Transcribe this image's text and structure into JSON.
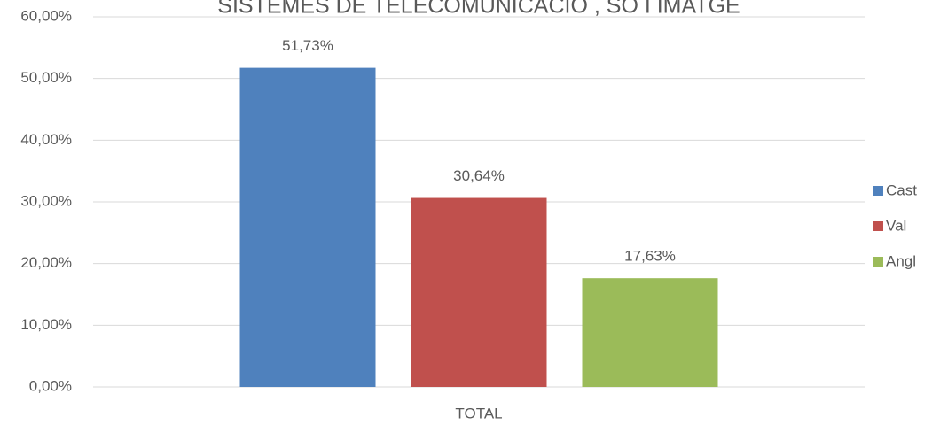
{
  "chart_data": {
    "type": "bar",
    "title": "SISTEMES DE TELECOMUNICACIÓ , SO I IMATGE",
    "categories": [
      "TOTAL"
    ],
    "series": [
      {
        "name": "Cast",
        "color": "#4f81bd",
        "values": [
          51.73
        ],
        "value_labels": [
          "51,73%"
        ]
      },
      {
        "name": "Val",
        "color": "#c0504d",
        "values": [
          30.64
        ],
        "value_labels": [
          "30,64%"
        ]
      },
      {
        "name": "Angl",
        "color": "#9bbb59",
        "values": [
          17.63
        ],
        "value_labels": [
          "17,63%"
        ]
      }
    ],
    "ylim": [
      0,
      60
    ],
    "yticks": [
      {
        "value": 0,
        "label": "0,00%"
      },
      {
        "value": 10,
        "label": "10,00%"
      },
      {
        "value": 20,
        "label": "20,00%"
      },
      {
        "value": 30,
        "label": "30,00%"
      },
      {
        "value": 40,
        "label": "40,00%"
      },
      {
        "value": 50,
        "label": "50,00%"
      },
      {
        "value": 60,
        "label": "60,00%"
      }
    ],
    "grid": true,
    "legend": "right"
  }
}
